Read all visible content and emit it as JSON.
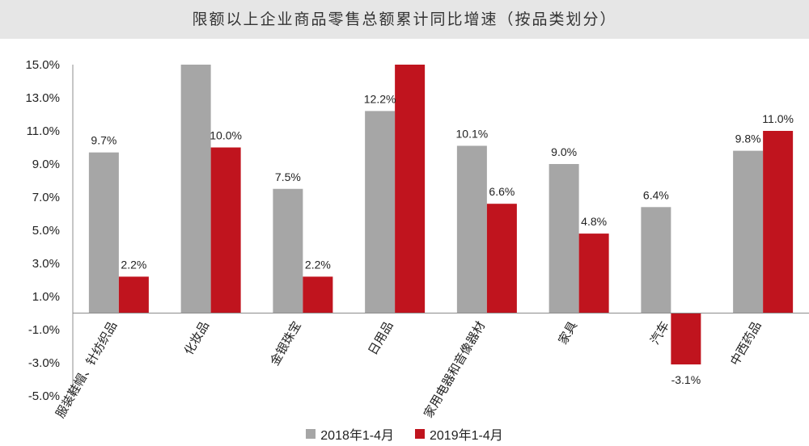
{
  "title": "限额以上企业商品零售总额累计同比增速（按品类划分）",
  "chart_data": {
    "type": "bar",
    "title": "限额以上企业商品零售总额累计同比增速（按品类划分）",
    "categories": [
      "服装鞋帽、针纺织品",
      "化妆品",
      "金银珠宝",
      "日用品",
      "家用电器和音像器材",
      "家具",
      "汽车",
      "中西药品"
    ],
    "series": [
      {
        "name": "2018年1-4月",
        "color": "#a6a6a6",
        "values": [
          9.7,
          15.0,
          7.5,
          12.2,
          10.1,
          9.0,
          6.4,
          9.8
        ],
        "labels": [
          "9.7%",
          "",
          "7.5%",
          "12.2%",
          "10.1%",
          "9.0%",
          "6.4%",
          "9.8%"
        ]
      },
      {
        "name": "2019年1-4月",
        "color": "#c0141e",
        "values": [
          2.2,
          10.0,
          2.2,
          15.0,
          6.6,
          4.8,
          -3.1,
          11.0
        ],
        "labels": [
          "2.2%",
          "10.0%",
          "2.2%",
          "",
          "6.6%",
          "4.8%",
          "-3.1%",
          "11.0%"
        ]
      }
    ],
    "yticks": [
      "15.0%",
      "13.0%",
      "11.0%",
      "9.0%",
      "7.0%",
      "5.0%",
      "3.0%",
      "1.0%",
      "-1.0%",
      "-3.0%",
      "-5.0%"
    ],
    "ytick_values": [
      15,
      13,
      11,
      9,
      7,
      5,
      3,
      1,
      -1,
      -3,
      -5
    ],
    "ylim": [
      -5,
      15
    ],
    "grid": false,
    "legend_position": "bottom"
  }
}
